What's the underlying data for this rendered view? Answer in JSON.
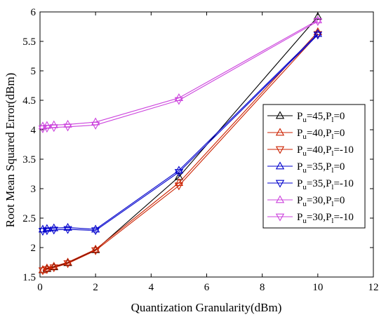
{
  "chart_data": {
    "type": "line",
    "title": "",
    "xlabel": "Quantization Granularity(dBm)",
    "ylabel": "Root Mean Squared Error(dBm)",
    "xlim": [
      0,
      12
    ],
    "ylim": [
      1.5,
      6
    ],
    "xticks": [
      "0",
      "2",
      "4",
      "6",
      "8",
      "10",
      "12"
    ],
    "yticks": [
      "1.5",
      "2",
      "2.5",
      "3",
      "3.5",
      "4",
      "4.5",
      "5",
      "5.5",
      "6"
    ],
    "grid": false,
    "legend_position": "right",
    "x": [
      0.1,
      0.25,
      0.5,
      1,
      2,
      5,
      10
    ],
    "series": [
      {
        "name": "P=45,P=0",
        "name_parts": {
          "u": "45",
          "l": "0"
        },
        "color": "#000000",
        "marker": "triangle-up",
        "values": [
          1.62,
          1.64,
          1.67,
          1.74,
          1.96,
          3.2,
          5.92
        ]
      },
      {
        "name": "P=40,P=0",
        "name_parts": {
          "u": "40",
          "l": "0"
        },
        "color": "#cc2200",
        "marker": "triangle-up",
        "values": [
          1.62,
          1.65,
          1.68,
          1.75,
          1.97,
          3.1,
          5.66
        ]
      },
      {
        "name": "P=40,P=-10",
        "name_parts": {
          "u": "40",
          "l": "-10"
        },
        "color": "#cc2200",
        "marker": "triangle-down",
        "values": [
          1.61,
          1.63,
          1.66,
          1.73,
          1.95,
          3.05,
          5.62
        ]
      },
      {
        "name": "P=35,P=0",
        "name_parts": {
          "u": "35",
          "l": "0"
        },
        "color": "#0000cc",
        "marker": "triangle-up",
        "values": [
          2.31,
          2.32,
          2.33,
          2.34,
          2.31,
          3.31,
          5.63
        ]
      },
      {
        "name": "P=35,P=-10",
        "name_parts": {
          "u": "35",
          "l": "-10"
        },
        "color": "#0000cc",
        "marker": "triangle-down",
        "values": [
          2.28,
          2.29,
          2.3,
          2.31,
          2.29,
          3.28,
          5.61
        ]
      },
      {
        "name": "P=30,P=0",
        "name_parts": {
          "u": "30",
          "l": "0"
        },
        "color": "#cc44dd",
        "marker": "triangle-up",
        "values": [
          4.06,
          4.07,
          4.08,
          4.09,
          4.13,
          4.54,
          5.86
        ]
      },
      {
        "name": "P=30,P=-10",
        "name_parts": {
          "u": "30",
          "l": "-10"
        },
        "color": "#cc44dd",
        "marker": "triangle-down",
        "values": [
          4.02,
          4.03,
          4.04,
          4.05,
          4.08,
          4.5,
          5.84
        ]
      }
    ]
  }
}
